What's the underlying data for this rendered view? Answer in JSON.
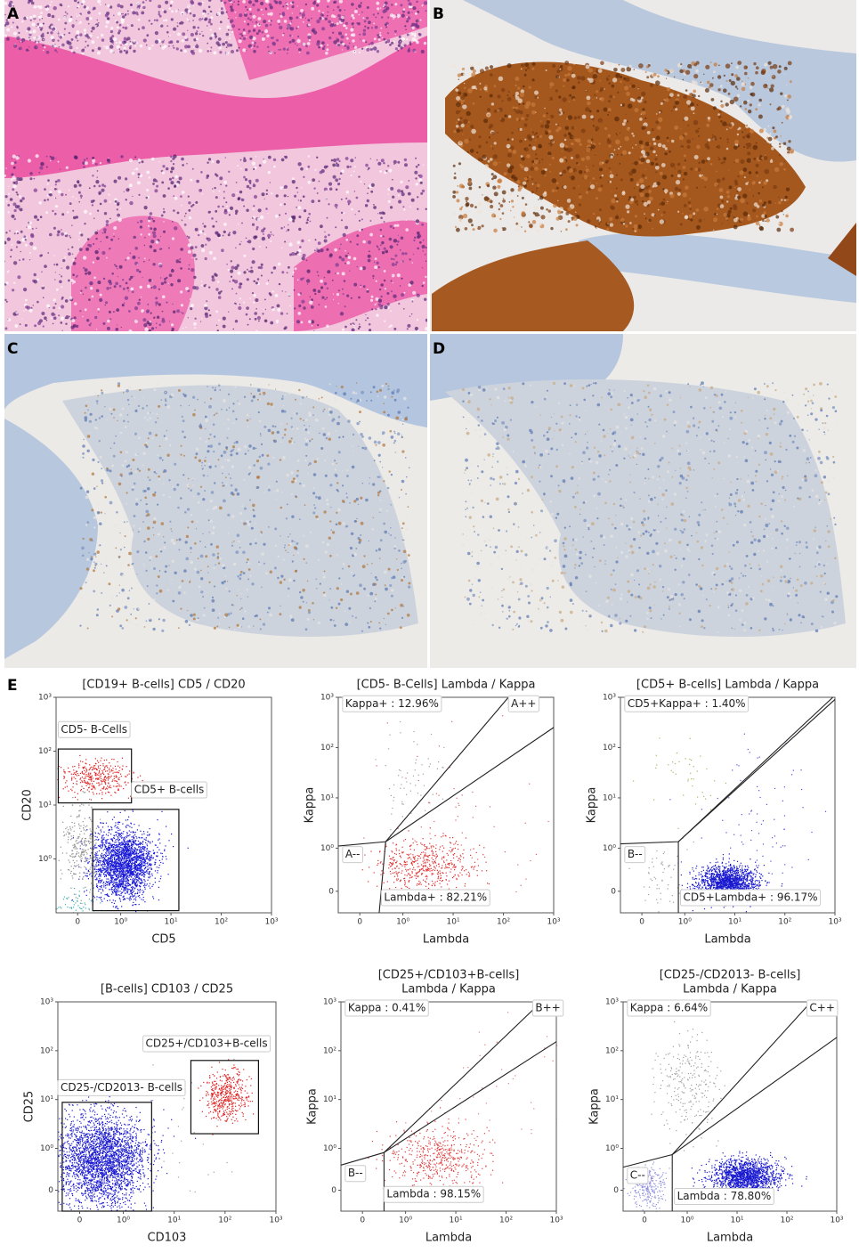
{
  "panels": {
    "a": "A",
    "b": "B",
    "c": "C",
    "d": "D",
    "e": "E"
  },
  "flow": {
    "plots": [
      {
        "title": [
          "[CD19+ B-cells] CD5 / CD20"
        ],
        "xlabel": "CD5",
        "ylabel": "CD20",
        "xticks": [
          "0",
          "10⁰",
          "10¹",
          "10²",
          "10³"
        ],
        "yticks": [
          "10⁰",
          "10¹",
          "10²",
          "10³"
        ],
        "gates": [
          "CD5- B-Cells",
          "CD5+ B-cells"
        ]
      },
      {
        "title": [
          "[CD5- B-Cells] Lambda / Kappa"
        ],
        "xlabel": "Lambda",
        "ylabel": "Kappa",
        "xticks": [
          "0",
          "10⁰",
          "10¹",
          "10²",
          "10³"
        ],
        "yticks": [
          "0",
          "10⁰",
          "10¹",
          "10²",
          "10³"
        ],
        "gates": [
          "Kappa+ : 12.96%",
          "A++",
          "A--",
          "Lambda+ : 82.21%"
        ]
      },
      {
        "title": [
          "[CD5+ B-cells] Lambda / Kappa"
        ],
        "xlabel": "Lambda",
        "ylabel": "Kappa",
        "xticks": [
          "0",
          "10⁰",
          "10¹",
          "10²",
          "10³"
        ],
        "yticks": [
          "0",
          "10⁰",
          "10¹",
          "10²",
          "10³"
        ],
        "gates": [
          "CD5+Kappa+ : 1.40%",
          "B--",
          "CD5+Lambda+ : 96.17%"
        ]
      },
      {
        "title": [
          "[B-cells] CD103 / CD25"
        ],
        "xlabel": "CD103",
        "ylabel": "CD25",
        "xticks": [
          "0",
          "10⁰",
          "10¹",
          "10²",
          "10³"
        ],
        "yticks": [
          "0",
          "10⁰",
          "10¹",
          "10²",
          "10³"
        ],
        "gates": [
          "CD25-/CD2013- B-cells",
          "CD25+/CD103+B-cells"
        ]
      },
      {
        "title": [
          "[CD25+/CD103+B-cells]",
          "Lambda / Kappa"
        ],
        "xlabel": "Lambda",
        "ylabel": "Kappa",
        "xticks": [
          "0",
          "10⁰",
          "10¹",
          "10²",
          "10³"
        ],
        "yticks": [
          "0",
          "10⁰",
          "10¹",
          "10²",
          "10³"
        ],
        "gates": [
          "Kappa : 0.41%",
          "B++",
          "B--",
          "Lambda : 98.15%"
        ]
      },
      {
        "title": [
          "[CD25-/CD2013- B-cells]",
          "Lambda / Kappa"
        ],
        "xlabel": "Lambda",
        "ylabel": "Kappa",
        "xticks": [
          "0",
          "10⁰",
          "10¹",
          "10²",
          "10³"
        ],
        "yticks": [
          "0",
          "10⁰",
          "10¹",
          "10²",
          "10³"
        ],
        "gates": [
          "Kappa : 6.64%",
          "C++",
          "C--",
          "Lambda : 78.80%"
        ]
      }
    ]
  }
}
